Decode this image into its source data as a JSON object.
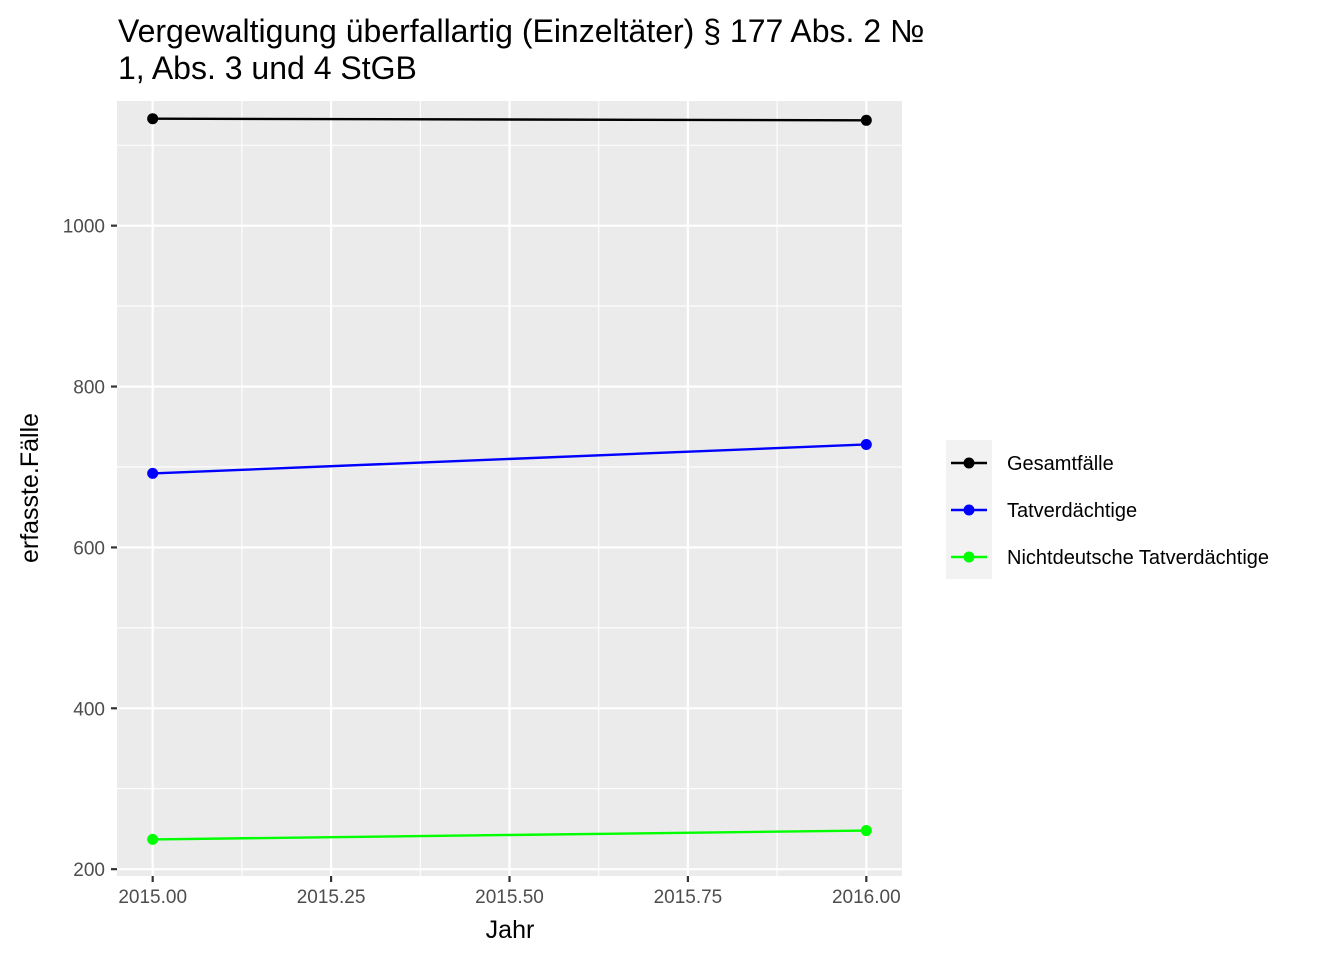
{
  "chart_data": {
    "type": "line",
    "title_lines": [
      "Vergewaltigung überfallartig (Einzeltäter) § 177 Abs. 2 №",
      "1, Abs. 3 und 4 StGB"
    ],
    "xlabel": "Jahr",
    "ylabel": "erfasste.Fälle",
    "x": [
      2015,
      2016
    ],
    "xlim": [
      2014.95,
      2016.05
    ],
    "ylim": [
      191.5,
      1155
    ],
    "x_ticks": [
      2015.0,
      2015.25,
      2015.5,
      2015.75,
      2016.0
    ],
    "x_tick_labels": [
      "2015.00",
      "2015.25",
      "2015.50",
      "2015.75",
      "2016.00"
    ],
    "y_ticks": [
      200,
      400,
      600,
      800,
      1000
    ],
    "y_tick_labels": [
      "200",
      "400",
      "600",
      "800",
      "1000"
    ],
    "grid": true,
    "legend_position": "right",
    "series": [
      {
        "name": "Gesamtfälle",
        "color": "#000000",
        "values": [
          1133,
          1131
        ]
      },
      {
        "name": "Tatverdächtige",
        "color": "#0000ff",
        "values": [
          692,
          728
        ]
      },
      {
        "name": "Nichtdeutsche Tatverdächtige",
        "color": "#00ff00",
        "values": [
          237,
          248
        ]
      }
    ]
  }
}
